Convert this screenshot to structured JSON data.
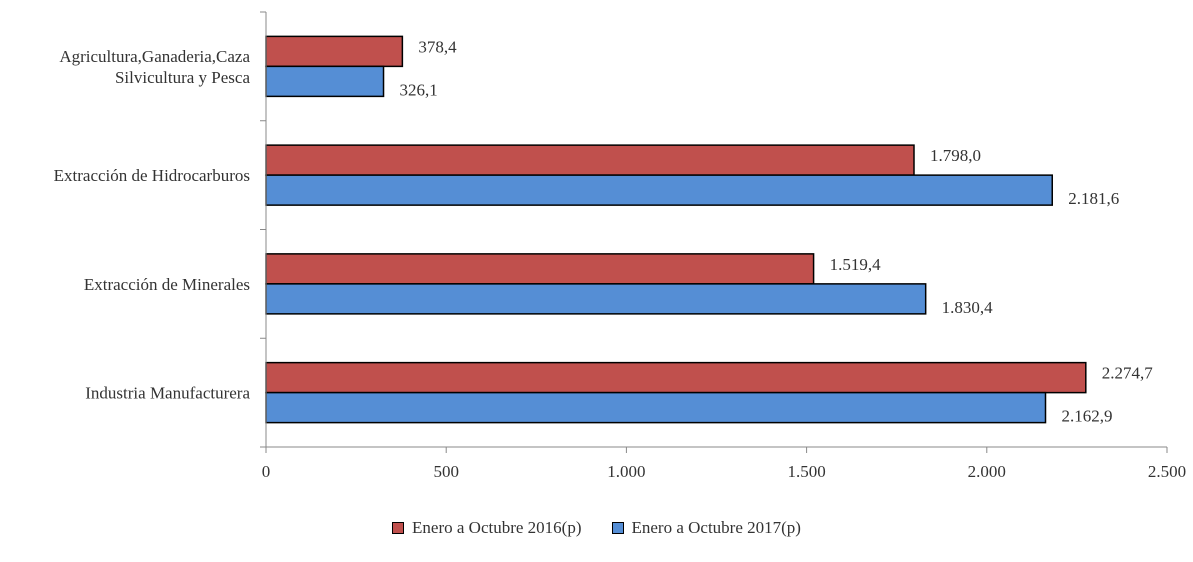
{
  "chart_data": {
    "type": "bar",
    "orientation": "horizontal",
    "categories": [
      "Agricultura,Ganaderia,Caza\nSilvicultura y Pesca",
      "Extracción de Hidrocarburos",
      "Extracción de Minerales",
      "Industria Manufacturera"
    ],
    "series": [
      {
        "name": "Enero a Octubre 2016(p)",
        "color": "#c0504d",
        "values": [
          378.4,
          1798.0,
          1519.4,
          2274.7
        ],
        "labels": [
          "378,4",
          "1.798,0",
          "1.519,4",
          "2.274,7"
        ]
      },
      {
        "name": "Enero a Octubre 2017(p)",
        "color": "#558ed5",
        "values": [
          326.1,
          2181.6,
          1830.4,
          2162.9
        ],
        "labels": [
          "326,1",
          "2.181,6",
          "1.830,4",
          "2.162,9"
        ]
      }
    ],
    "xlim": [
      0,
      2500
    ],
    "xticks": [
      0,
      500,
      1000,
      1500,
      2000,
      2500
    ],
    "xtick_labels": [
      "0",
      "500",
      "1.000",
      "1.500",
      "2.000",
      "2.500"
    ],
    "grid": false,
    "legend_position": "bottom"
  }
}
